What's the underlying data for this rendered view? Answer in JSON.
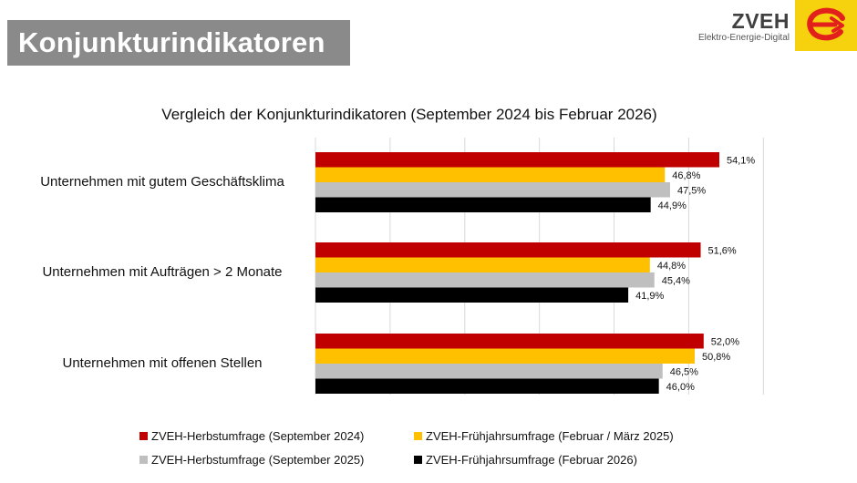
{
  "header": {
    "title": "Konjunkturindikatoren",
    "logo_name": "ZVEH",
    "logo_subtitle": "Elektro-Energie-Digital"
  },
  "colors": {
    "red": "#c00000",
    "yellow": "#ffc000",
    "gray": "#bfbfbf",
    "black": "#000000",
    "logo_yellow": "#f6d10e",
    "logo_red": "#e2211c"
  },
  "icons": {
    "logo": "zveh-logo-icon"
  },
  "chart_data": {
    "type": "bar",
    "orientation": "horizontal",
    "title": "Vergleich der Konjunkturindikatoren (September 2024 bis Februar 2026)",
    "categories": [
      "Unternehmen mit gutem Geschäftsklima",
      "Unternehmen mit Aufträgen > 2 Monate",
      "Unternehmen mit offenen Stellen"
    ],
    "series": [
      {
        "name": "ZVEH-Herbstumfrage (September 2024)",
        "color": "#c00000",
        "values": [
          54.1,
          51.6,
          52.0
        ],
        "labels": [
          "54,1%",
          "51,6%",
          "52,0%"
        ]
      },
      {
        "name": "ZVEH-Frühjahrsumfrage (Februar / März 2025)",
        "color": "#ffc000",
        "values": [
          46.8,
          44.8,
          50.8
        ],
        "labels": [
          "46,8%",
          "44,8%",
          "50,8%"
        ]
      },
      {
        "name": "ZVEH-Herbstumfrage (September 2025)",
        "color": "#bfbfbf",
        "values": [
          47.5,
          45.4,
          46.5
        ],
        "labels": [
          "47,5%",
          "45,4%",
          "46,5%"
        ]
      },
      {
        "name": "ZVEH-Frühjahrsumfrage (Februar 2026)",
        "color": "#000000",
        "values": [
          44.9,
          41.9,
          46.0
        ],
        "labels": [
          "44,9%",
          "41,9%",
          "46,0%"
        ]
      }
    ],
    "xlim": [
      0,
      60
    ],
    "grid": true,
    "legend": "bottom"
  }
}
